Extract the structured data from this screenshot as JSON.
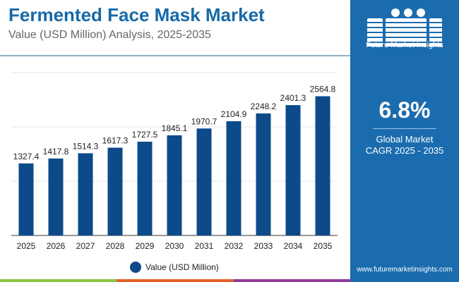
{
  "header": {
    "title": "Fermented Face Mask Market",
    "subtitle": "Value (USD Million) Analysis, 2025-2035"
  },
  "panel": {
    "logo_text": "Future Market Insights",
    "cagr_value": "6.8%",
    "cagr_label_1": "Global Market",
    "cagr_label_2": "CAGR 2025 - 2035",
    "url": "www.futuremarketinsights.com",
    "color": "#1a6cae"
  },
  "chart_data": {
    "type": "bar",
    "categories": [
      "2025",
      "2026",
      "2027",
      "2028",
      "2029",
      "2030",
      "2031",
      "2032",
      "2033",
      "2034",
      "2035"
    ],
    "series": [
      {
        "name": "Value (USD Million)",
        "values": [
          1327.4,
          1417.8,
          1514.3,
          1617.3,
          1727.5,
          1845.1,
          1970.7,
          2104.9,
          2248.2,
          2401.3,
          2564.8
        ],
        "labels": [
          "1327.4",
          "1417.8",
          "1514.3",
          "1617.3",
          "1727.5",
          "1845.1",
          "1970.7",
          "2104.9",
          "2248.2",
          "2401.3",
          "2564.8"
        ],
        "color": "#0c4a8a"
      }
    ],
    "ylim": [
      0,
      3000
    ],
    "grid": true,
    "legend": "bottom",
    "title": "",
    "xlabel": "",
    "ylabel": ""
  }
}
